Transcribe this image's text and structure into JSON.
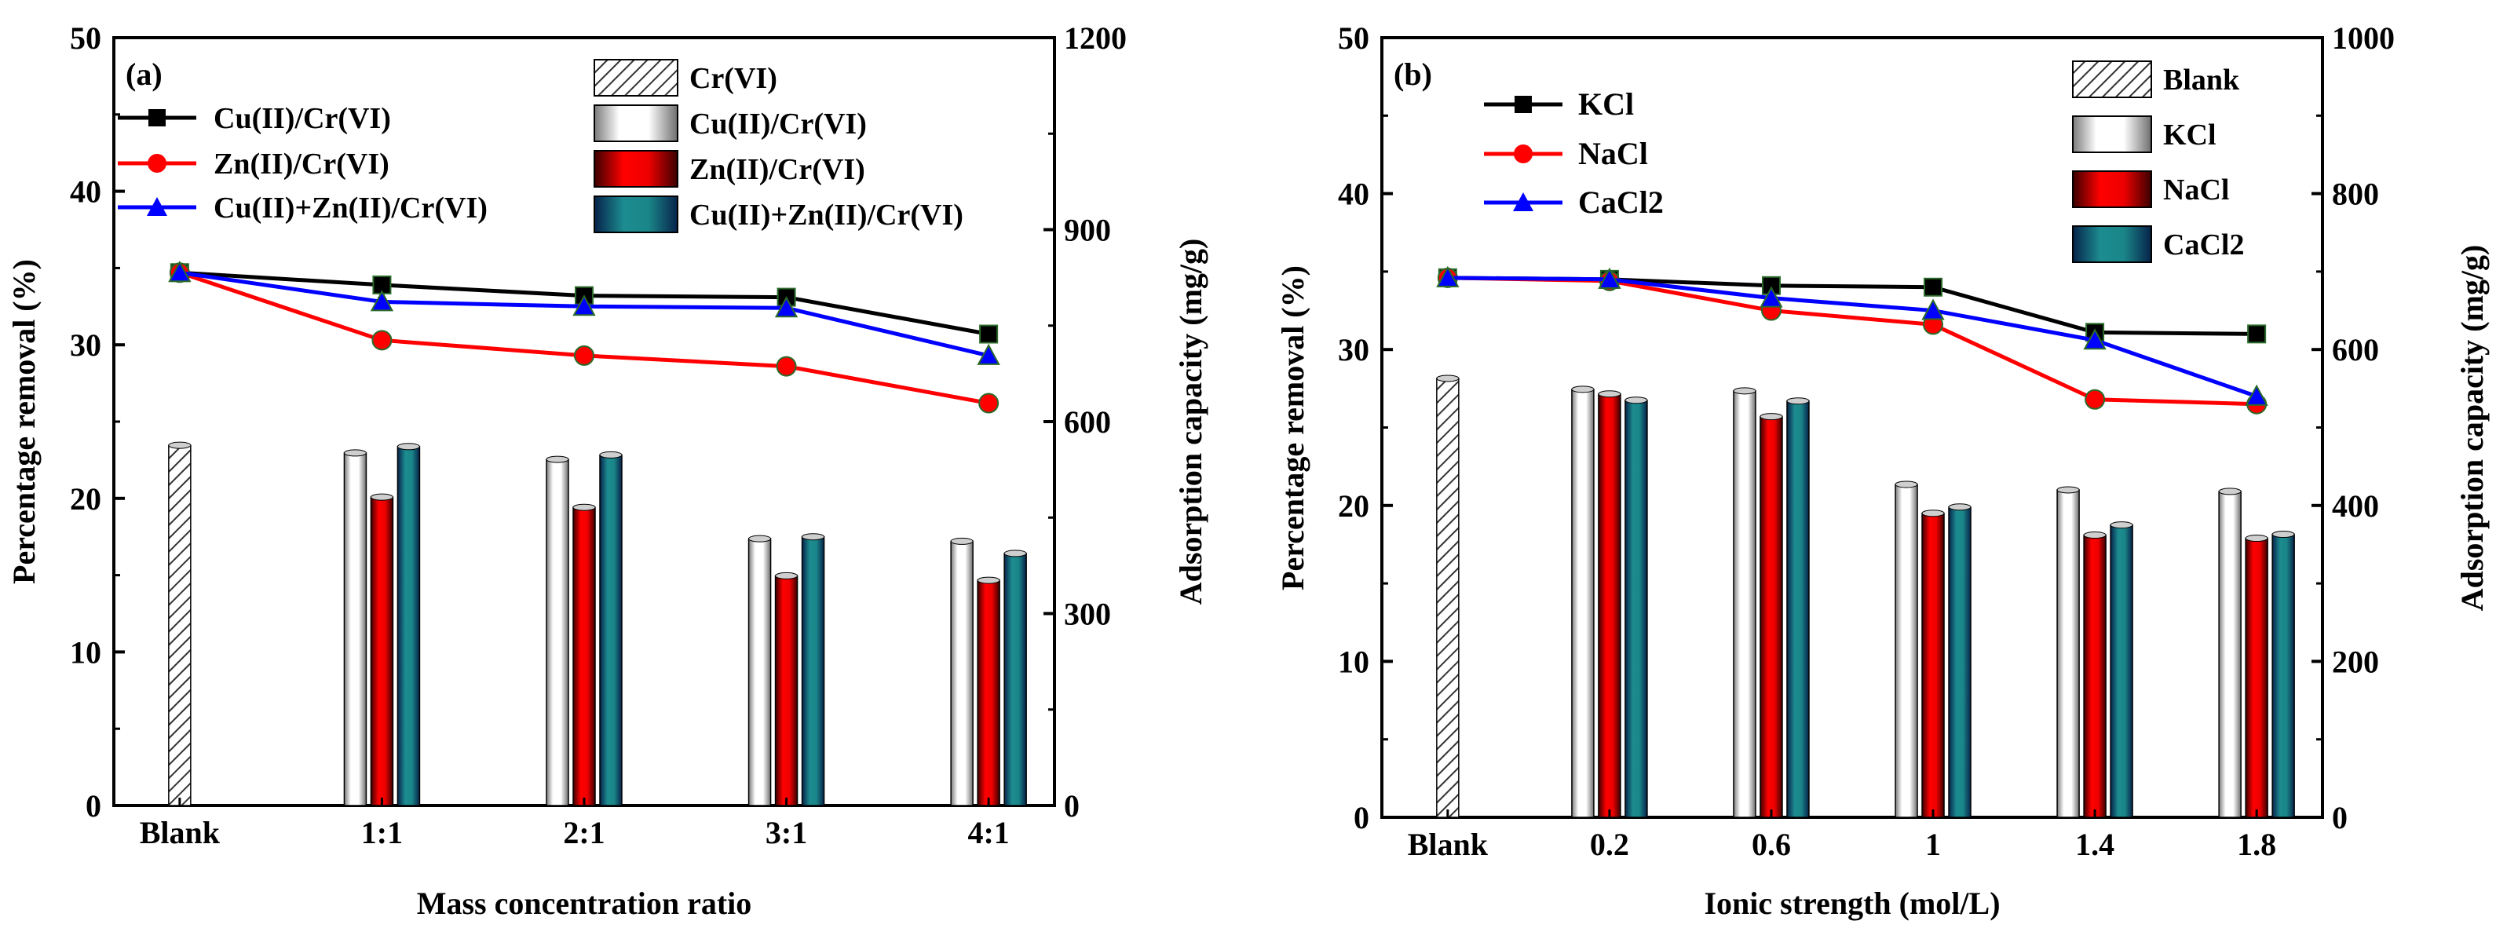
{
  "chart_data": [
    {
      "type": "bar+line",
      "panel_label": "(a)",
      "xlabel": "Mass concentration ratio",
      "ylabel": "Percentage removal (%)",
      "ylabel_right": "Adsorption capacity (mg/g)",
      "categories": [
        "Blank",
        "1:1",
        "2:1",
        "3:1",
        "4:1"
      ],
      "ylim": [
        0,
        50
      ],
      "yticks": [
        "0",
        "10",
        "20",
        "30",
        "40",
        "50"
      ],
      "ylim_right": [
        0,
        1200
      ],
      "yticks_right": [
        "0",
        "300",
        "600",
        "900",
        "1200"
      ],
      "line_series": [
        {
          "name": "Cu(II)/Cr(VI)",
          "color": "#000000",
          "marker": "square",
          "values": [
            34.7,
            33.9,
            33.2,
            33.1,
            30.7
          ]
        },
        {
          "name": "Zn(II)/Cr(VI)",
          "color": "#ff0000",
          "marker": "circle",
          "values": [
            34.7,
            30.3,
            29.3,
            28.6,
            26.2
          ]
        },
        {
          "name": "Cu(II)+Zn(II)/Cr(VI)",
          "color": "#0000ff",
          "marker": "triangle",
          "values": [
            34.7,
            32.8,
            32.5,
            32.4,
            29.3
          ]
        }
      ],
      "bar_series": [
        {
          "name": "Cr(VI)",
          "pattern": "hatch",
          "values": [
            563,
            null,
            null,
            null,
            null
          ]
        },
        {
          "name": "Cu(II)/Cr(VI)",
          "pattern": "white",
          "values": [
            null,
            551,
            541,
            417,
            413
          ]
        },
        {
          "name": "Zn(II)/Cr(VI)",
          "pattern": "red",
          "values": [
            null,
            482,
            466,
            359,
            352
          ]
        },
        {
          "name": "Cu(II)+Zn(II)/Cr(VI)",
          "pattern": "teal",
          "values": [
            null,
            561,
            548,
            420,
            394
          ]
        }
      ]
    },
    {
      "type": "bar+line",
      "panel_label": "(b)",
      "xlabel": "Ionic strength (mol/L)",
      "ylabel": "Percentage removal (%)",
      "ylabel_right": "Adsorption capacity (mg/g)",
      "categories": [
        "Blank",
        "0.2",
        "0.6",
        "1",
        "1.4",
        "1.8"
      ],
      "ylim": [
        0,
        50
      ],
      "yticks": [
        "0",
        "10",
        "20",
        "30",
        "40",
        "50"
      ],
      "ylim_right": [
        0,
        1000
      ],
      "yticks_right": [
        "0",
        "200",
        "400",
        "600",
        "800",
        "1000"
      ],
      "line_series": [
        {
          "name": "KCl",
          "color": "#000000",
          "marker": "square",
          "values": [
            34.6,
            34.5,
            34.1,
            34.0,
            31.1,
            31.0
          ]
        },
        {
          "name": "NaCl",
          "color": "#ff0000",
          "marker": "circle",
          "values": [
            34.6,
            34.4,
            32.5,
            31.6,
            26.8,
            26.5
          ]
        },
        {
          "name": "CaCl2",
          "color": "#0000ff",
          "marker": "triangle",
          "values": [
            34.6,
            34.5,
            33.3,
            32.5,
            30.6,
            27.0
          ]
        }
      ],
      "bar_series": [
        {
          "name": "Blank",
          "pattern": "hatch",
          "values": [
            563,
            null,
            null,
            null,
            null,
            null
          ]
        },
        {
          "name": "KCl",
          "pattern": "white",
          "values": [
            null,
            549,
            547,
            427,
            420,
            418
          ]
        },
        {
          "name": "NaCl",
          "pattern": "red",
          "values": [
            null,
            543,
            514,
            390,
            362,
            358
          ]
        },
        {
          "name": "CaCl2",
          "pattern": "teal",
          "values": [
            null,
            535,
            534,
            398,
            375,
            363
          ]
        }
      ]
    }
  ]
}
